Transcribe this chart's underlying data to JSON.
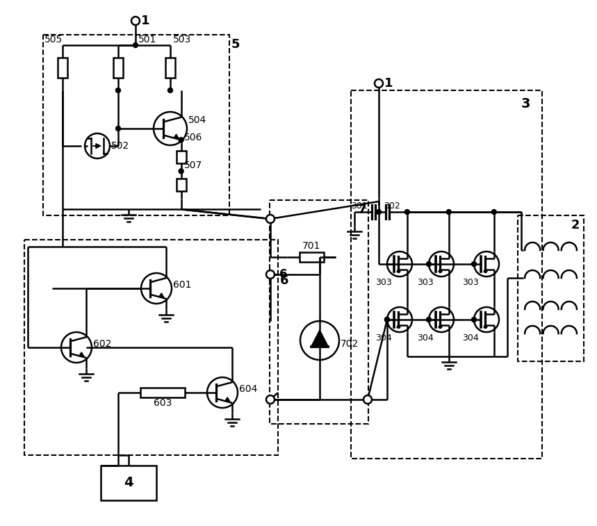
{
  "bg": "#ffffff",
  "lc": "#000000",
  "lw": 1.8,
  "dlw": 1.5,
  "fig_w": 8.59,
  "fig_h": 7.57,
  "dpi": 100
}
